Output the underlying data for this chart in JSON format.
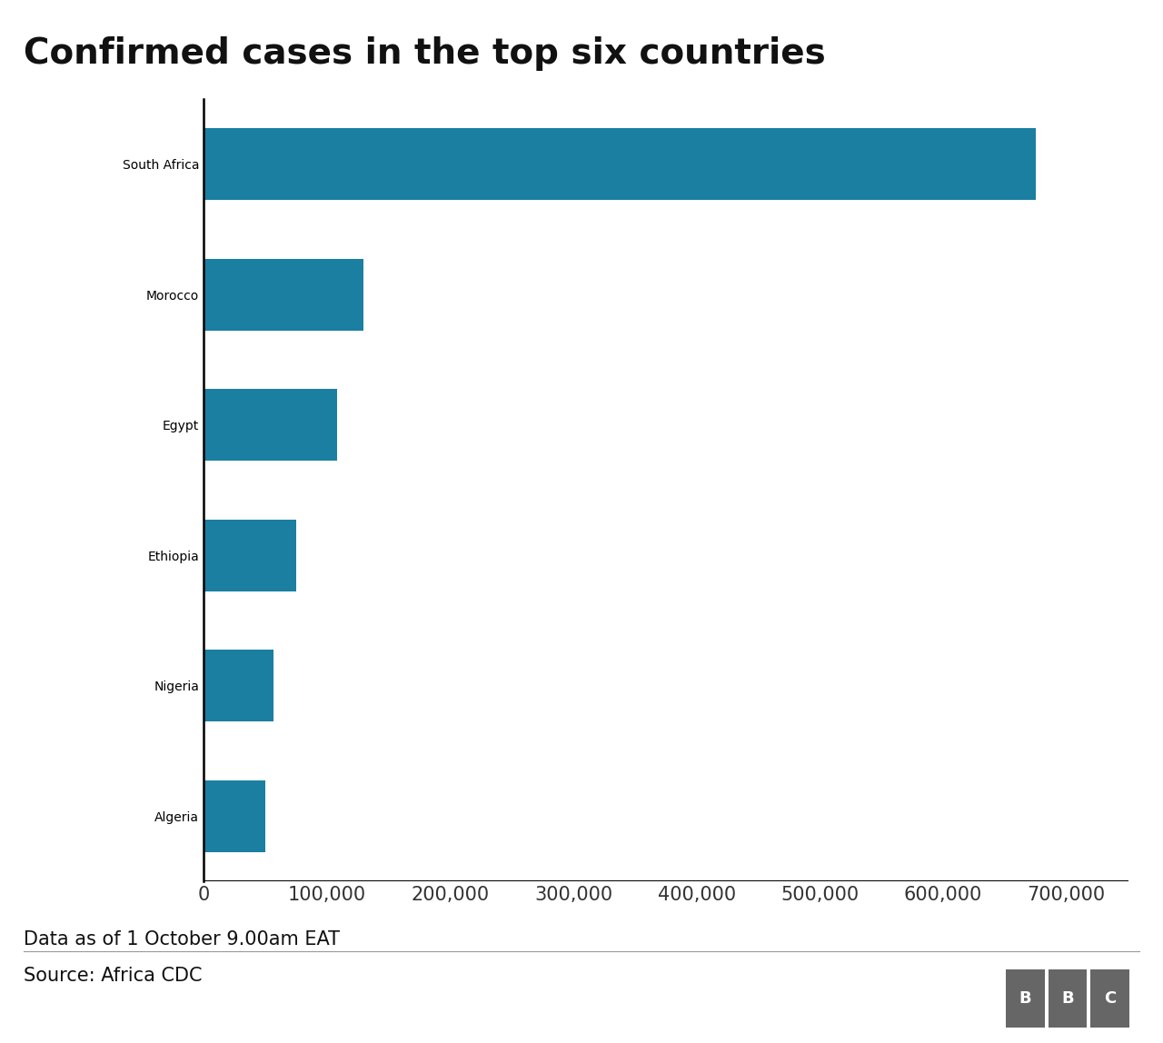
{
  "title": "Confirmed cases in the top six countries",
  "countries": [
    "South Africa",
    "Morocco",
    "Egypt",
    "Ethiopia",
    "Nigeria",
    "Algeria"
  ],
  "values": [
    675000,
    130000,
    108000,
    75000,
    57000,
    50000
  ],
  "bar_color": "#1a7fa0",
  "background_color": "#ffffff",
  "xlim": [
    0,
    750000
  ],
  "xticks": [
    0,
    100000,
    200000,
    300000,
    400000,
    500000,
    600000,
    700000
  ],
  "xtick_labels": [
    "0",
    "100,000",
    "200,000",
    "300,000",
    "400,000",
    "500,000",
    "600,000",
    "700,000"
  ],
  "footnote": "Data as of 1 October 9.00am EAT",
  "source": "Source: Africa CDC",
  "title_fontsize": 28,
  "label_fontsize": 17,
  "tick_fontsize": 15,
  "footnote_fontsize": 15,
  "bar_height": 0.55
}
